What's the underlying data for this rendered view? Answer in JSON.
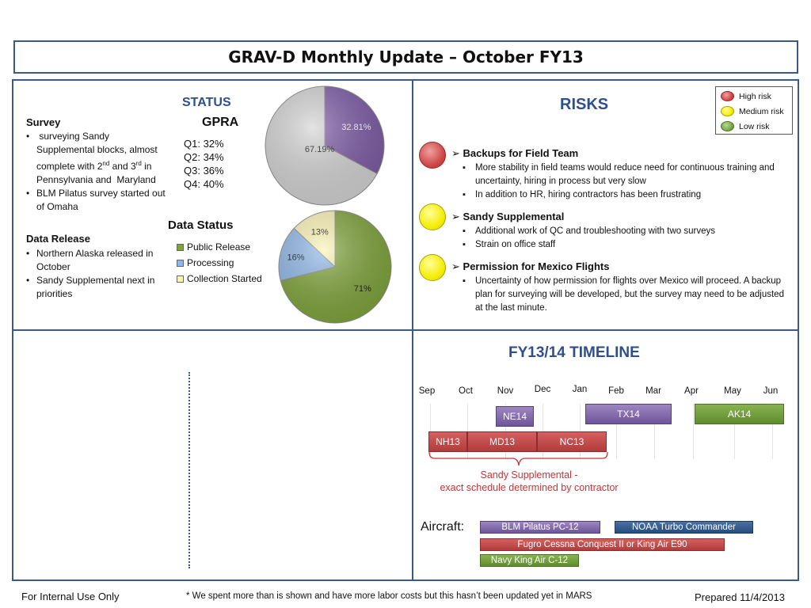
{
  "title": "GRAV-D Monthly Update – October FY13",
  "status": {
    "heading": "STATUS",
    "survey": {
      "heading": "Survey",
      "bullets": [
        " surveying Sandy Supplemental blocks, almost complete with 2nd and 3rd in Pennsylvania and  Maryland",
        "BLM Pilatus survey started out of Omaha"
      ]
    },
    "data_release": {
      "heading": "Data Release",
      "bullets": [
        "Northern Alaska released in October",
        "Sandy Supplemental next in priorities"
      ]
    },
    "gpra": {
      "heading": "GPRA",
      "quarters": [
        "Q1: 32%",
        "Q2: 34%",
        "Q3: 36%",
        "Q4: 40%"
      ]
    },
    "data_status": {
      "heading": "Data Status",
      "legend": [
        "Public Release",
        "Processing",
        "Collection Started"
      ]
    }
  },
  "chart_data": [
    {
      "type": "pie",
      "title": "GPRA",
      "categories": [
        "",
        ""
      ],
      "values": [
        32.81,
        67.19
      ],
      "labels": [
        "32.81%",
        "67.19%"
      ],
      "colors": [
        "#7d5ba6",
        "#d4d4d4"
      ]
    },
    {
      "type": "pie",
      "title": "Data Status",
      "categories": [
        "Public Release",
        "Processing",
        "Collection Started"
      ],
      "values": [
        71,
        16,
        13
      ],
      "labels": [
        "71%",
        "16%",
        "13%"
      ],
      "colors": [
        "#7fa43a",
        "#8fb8e8",
        "#fbf3b5"
      ]
    }
  ],
  "risks": {
    "heading": "RISKS",
    "legend": [
      {
        "label": "High risk",
        "color": "#cc4444"
      },
      {
        "label": "Medium risk",
        "color": "#f4ec00"
      },
      {
        "label": "Low risk",
        "color": "#79a542"
      }
    ],
    "items": [
      {
        "level": "high",
        "heading": "Backups for Field Team",
        "bullets": [
          "More stability in field teams would reduce need for continuous training and uncertainty, hiring in process but very slow",
          "In addition to HR, hiring contractors has been frustrating"
        ]
      },
      {
        "level": "medium",
        "heading": "Sandy Supplemental",
        "bullets": [
          "Additional work of QC and troubleshooting with two surveys",
          "Strain on office staff"
        ]
      },
      {
        "level": "medium",
        "heading": "Permission for Mexico Flights",
        "bullets": [
          "Uncertainty of how permission for flights over Mexico will proceed. A backup plan for surveying will be developed, but the survey may need to be adjusted at the last minute."
        ]
      }
    ]
  },
  "timeline": {
    "heading": "FY13/14 TIMELINE",
    "months": [
      "Sep",
      "Oct",
      "Nov",
      "Dec",
      "Jan",
      "Feb",
      "Mar",
      "Apr",
      "May",
      "Jun"
    ],
    "bars": [
      "NE14",
      "TX14",
      "AK14",
      "NH13",
      "MD13",
      "NC13"
    ],
    "note_line1": "Sandy Supplemental -",
    "note_line2": "exact schedule determined by contractor",
    "aircraft_label": "Aircraft:",
    "aircraft": [
      "BLM Pilatus PC-12",
      "NOAA Turbo Commander",
      "Fugro Cessna Conquest II or King Air E90",
      "Navy King Air C-12"
    ]
  },
  "footer": {
    "left": "For Internal Use Only",
    "note": "* We spent more than is shown and have more labor costs but this hasn’t been updated yet in MARS",
    "right": "Prepared 11/4/2013"
  }
}
